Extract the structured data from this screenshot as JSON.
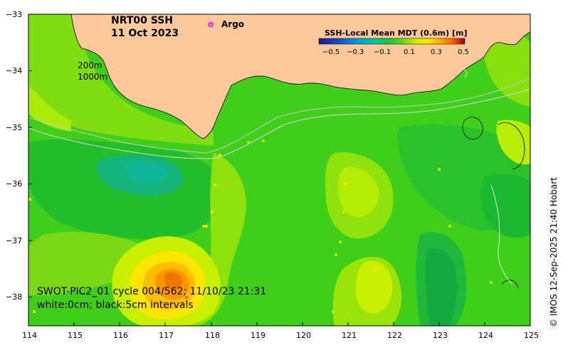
{
  "title": {
    "line1": "NRT00 SSH",
    "line2": "11 Oct 2023"
  },
  "legend": {
    "argo_symbol": "o",
    "argo_label": "Argo",
    "colorbar_title": "SSH-Local Mean MDT (0.6m) [m]",
    "colorbar_ticks": [
      "−0.5",
      "−0.3",
      "−0.1",
      "0.1",
      "0.3",
      "0.5"
    ],
    "colorbar_colors": [
      "#1a1a8c",
      "#1446c8",
      "#0096dc",
      "#00c8a0",
      "#14c83c",
      "#64dc14",
      "#c8f000",
      "#ffe600",
      "#ffa500",
      "#ff5a00",
      "#e61414",
      "#a00000"
    ]
  },
  "isobaths": {
    "label_200": "200m",
    "label_1000": "1000m"
  },
  "annotation": {
    "line1": "SWOT-PIC2_01 cycle 004/562; 11/10/23 21:31",
    "line2": "white:0cm; black:5cm intervals"
  },
  "axes": {
    "x_ticks": [
      "114",
      "115",
      "116",
      "117",
      "118",
      "119",
      "120",
      "121",
      "122",
      "123",
      "124",
      "125"
    ],
    "y_ticks": [
      "−33",
      "−34",
      "−35",
      "−36",
      "−37",
      "−38"
    ]
  },
  "credit": "© IMOS 12-Sep-2025 21:40 Hobart",
  "colors": {
    "land": "#fdc99a",
    "ocean_base": "#3ccd14",
    "argo": "#ff00ff"
  }
}
